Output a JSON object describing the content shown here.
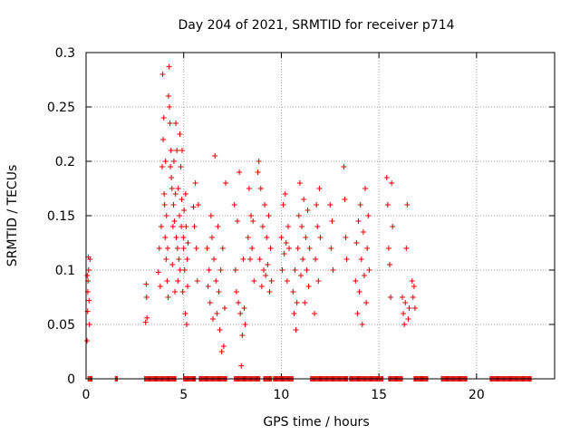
{
  "chart_data": {
    "type": "scatter",
    "title": "Day 204 of 2021, SRMTID for receiver p714",
    "xlabel": "GPS time / hours",
    "ylabel": "SRMTID / TECUs",
    "xlim": [
      0,
      24
    ],
    "ylim": [
      0,
      0.3
    ],
    "x_ticks": [
      0,
      5,
      10,
      15,
      20
    ],
    "x_tick_labels": [
      "0",
      "5",
      "10",
      "15",
      "20"
    ],
    "y_ticks": [
      0,
      0.05,
      0.1,
      0.15,
      0.2,
      0.25,
      0.3
    ],
    "y_tick_labels": [
      "0",
      "0.05",
      "0.1",
      "0.15",
      "0.2",
      "0.25",
      "0.3"
    ],
    "grid": true,
    "marker": "+",
    "color": "#dd0000",
    "series": [
      {
        "name": "SRMTID",
        "points": [
          [
            0.05,
            0.035
          ],
          [
            0.08,
            0.062
          ],
          [
            0.1,
            0.09
          ],
          [
            0.12,
            0.112
          ],
          [
            0.13,
            0.1
          ],
          [
            0.15,
            0.072
          ],
          [
            0.17,
            0.05
          ],
          [
            0.2,
            0.11
          ],
          [
            0.06,
            0.095
          ],
          [
            0.09,
            0.08
          ],
          [
            3.05,
            0.052
          ],
          [
            3.08,
            0.087
          ],
          [
            3.1,
            0.075
          ],
          [
            3.12,
            0.056
          ],
          [
            3.7,
            0.098
          ],
          [
            3.75,
            0.12
          ],
          [
            3.8,
            0.085
          ],
          [
            3.85,
            0.14
          ],
          [
            3.9,
            0.195
          ],
          [
            3.92,
            0.28
          ],
          [
            3.95,
            0.22
          ],
          [
            3.98,
            0.24
          ],
          [
            4.0,
            0.17
          ],
          [
            4.02,
            0.16
          ],
          [
            4.05,
            0.13
          ],
          [
            4.07,
            0.2
          ],
          [
            4.1,
            0.11
          ],
          [
            4.12,
            0.15
          ],
          [
            4.15,
            0.09
          ],
          [
            4.18,
            0.12
          ],
          [
            4.2,
            0.075
          ],
          [
            4.22,
            0.26
          ],
          [
            4.25,
            0.287
          ],
          [
            4.27,
            0.25
          ],
          [
            4.3,
            0.235
          ],
          [
            4.32,
            0.195
          ],
          [
            4.35,
            0.21
          ],
          [
            4.37,
            0.185
          ],
          [
            4.4,
            0.175
          ],
          [
            4.42,
            0.105
          ],
          [
            4.45,
            0.14
          ],
          [
            4.48,
            0.16
          ],
          [
            4.5,
            0.2
          ],
          [
            4.52,
            0.145
          ],
          [
            4.55,
            0.08
          ],
          [
            4.58,
            0.17
          ],
          [
            4.6,
            0.235
          ],
          [
            4.62,
            0.13
          ],
          [
            4.65,
            0.21
          ],
          [
            4.68,
            0.12
          ],
          [
            4.7,
            0.09
          ],
          [
            4.72,
            0.175
          ],
          [
            4.75,
            0.11
          ],
          [
            4.78,
            0.15
          ],
          [
            4.8,
            0.225
          ],
          [
            4.82,
            0.1
          ],
          [
            4.85,
            0.195
          ],
          [
            4.88,
            0.14
          ],
          [
            4.9,
            0.165
          ],
          [
            4.92,
            0.21
          ],
          [
            4.95,
            0.08
          ],
          [
            4.98,
            0.13
          ],
          [
            5.0,
            0.12
          ],
          [
            5.02,
            0.155
          ],
          [
            5.05,
            0.1
          ],
          [
            5.08,
            0.06
          ],
          [
            5.1,
            0.17
          ],
          [
            5.12,
            0.14
          ],
          [
            5.15,
            0.05
          ],
          [
            5.18,
            0.11
          ],
          [
            5.2,
            0.085
          ],
          [
            5.22,
            0.125
          ],
          [
            5.5,
            0.158
          ],
          [
            5.55,
            0.14
          ],
          [
            5.6,
            0.18
          ],
          [
            5.65,
            0.12
          ],
          [
            5.7,
            0.09
          ],
          [
            5.75,
            0.16
          ],
          [
            6.2,
            0.12
          ],
          [
            6.25,
            0.085
          ],
          [
            6.3,
            0.1
          ],
          [
            6.35,
            0.07
          ],
          [
            6.4,
            0.15
          ],
          [
            6.45,
            0.13
          ],
          [
            6.5,
            0.055
          ],
          [
            6.55,
            0.11
          ],
          [
            6.6,
            0.205
          ],
          [
            6.65,
            0.09
          ],
          [
            6.7,
            0.06
          ],
          [
            6.75,
            0.14
          ],
          [
            6.8,
            0.08
          ],
          [
            6.85,
            0.045
          ],
          [
            6.9,
            0.1
          ],
          [
            6.95,
            0.025
          ],
          [
            7.0,
            0.12
          ],
          [
            7.05,
            0.03
          ],
          [
            7.1,
            0.065
          ],
          [
            7.15,
            0.18
          ],
          [
            7.6,
            0.16
          ],
          [
            7.65,
            0.1
          ],
          [
            7.7,
            0.08
          ],
          [
            7.75,
            0.145
          ],
          [
            7.8,
            0.07
          ],
          [
            7.85,
            0.19
          ],
          [
            7.9,
            0.06
          ],
          [
            7.95,
            0.012
          ],
          [
            8.0,
            0.04
          ],
          [
            8.05,
            0.11
          ],
          [
            8.1,
            0.065
          ],
          [
            8.15,
            0.05
          ],
          [
            8.3,
            0.13
          ],
          [
            8.35,
            0.175
          ],
          [
            8.4,
            0.11
          ],
          [
            8.45,
            0.15
          ],
          [
            8.5,
            0.12
          ],
          [
            8.55,
            0.145
          ],
          [
            8.6,
            0.09
          ],
          [
            8.8,
            0.19
          ],
          [
            8.85,
            0.2
          ],
          [
            8.9,
            0.11
          ],
          [
            8.95,
            0.175
          ],
          [
            9.0,
            0.085
          ],
          [
            9.05,
            0.14
          ],
          [
            9.1,
            0.1
          ],
          [
            9.15,
            0.16
          ],
          [
            9.2,
            0.095
          ],
          [
            9.25,
            0.13
          ],
          [
            9.3,
            0.105
          ],
          [
            9.35,
            0.15
          ],
          [
            9.4,
            0.08
          ],
          [
            9.45,
            0.12
          ],
          [
            9.5,
            0.09
          ],
          [
            10.0,
            0.13
          ],
          [
            10.05,
            0.1
          ],
          [
            10.1,
            0.16
          ],
          [
            10.15,
            0.115
          ],
          [
            10.2,
            0.17
          ],
          [
            10.25,
            0.125
          ],
          [
            10.3,
            0.09
          ],
          [
            10.35,
            0.14
          ],
          [
            10.4,
            0.12
          ],
          [
            10.6,
            0.08
          ],
          [
            10.65,
            0.06
          ],
          [
            10.7,
            0.1
          ],
          [
            10.75,
            0.045
          ],
          [
            10.8,
            0.07
          ],
          [
            10.85,
            0.12
          ],
          [
            10.9,
            0.15
          ],
          [
            10.95,
            0.18
          ],
          [
            11.0,
            0.095
          ],
          [
            11.05,
            0.14
          ],
          [
            11.1,
            0.11
          ],
          [
            11.15,
            0.165
          ],
          [
            11.2,
            0.07
          ],
          [
            11.25,
            0.13
          ],
          [
            11.3,
            0.1
          ],
          [
            11.35,
            0.155
          ],
          [
            11.4,
            0.085
          ],
          [
            11.45,
            0.12
          ],
          [
            11.7,
            0.06
          ],
          [
            11.75,
            0.11
          ],
          [
            11.8,
            0.16
          ],
          [
            11.85,
            0.14
          ],
          [
            11.9,
            0.09
          ],
          [
            11.95,
            0.175
          ],
          [
            12.0,
            0.13
          ],
          [
            12.5,
            0.16
          ],
          [
            12.55,
            0.12
          ],
          [
            12.6,
            0.145
          ],
          [
            12.65,
            0.1
          ],
          [
            13.2,
            0.195
          ],
          [
            13.25,
            0.165
          ],
          [
            13.3,
            0.13
          ],
          [
            13.35,
            0.11
          ],
          [
            13.8,
            0.09
          ],
          [
            13.85,
            0.125
          ],
          [
            13.9,
            0.06
          ],
          [
            13.95,
            0.145
          ],
          [
            14.0,
            0.08
          ],
          [
            14.05,
            0.16
          ],
          [
            14.1,
            0.11
          ],
          [
            14.15,
            0.05
          ],
          [
            14.2,
            0.135
          ],
          [
            14.25,
            0.095
          ],
          [
            14.3,
            0.175
          ],
          [
            14.35,
            0.07
          ],
          [
            14.4,
            0.12
          ],
          [
            14.45,
            0.15
          ],
          [
            14.5,
            0.1
          ],
          [
            15.4,
            0.185
          ],
          [
            15.45,
            0.16
          ],
          [
            15.5,
            0.12
          ],
          [
            15.55,
            0.105
          ],
          [
            15.6,
            0.075
          ],
          [
            15.65,
            0.18
          ],
          [
            15.7,
            0.14
          ],
          [
            16.2,
            0.075
          ],
          [
            16.25,
            0.06
          ],
          [
            16.3,
            0.05
          ],
          [
            16.35,
            0.07
          ],
          [
            16.4,
            0.12
          ],
          [
            16.45,
            0.16
          ],
          [
            16.5,
            0.055
          ],
          [
            16.55,
            0.065
          ],
          [
            16.7,
            0.09
          ],
          [
            16.75,
            0.075
          ],
          [
            16.8,
            0.085
          ],
          [
            16.85,
            0.065
          ]
        ],
        "zero_runs": [
          [
            0.1,
            0.3
          ],
          [
            1.5,
            1.6
          ],
          [
            3.0,
            4.6
          ],
          [
            5.0,
            5.6
          ],
          [
            5.8,
            7.2
          ],
          [
            7.6,
            8.9
          ],
          [
            9.1,
            9.5
          ],
          [
            9.6,
            10.6
          ],
          [
            11.5,
            13.4
          ],
          [
            13.5,
            15.2
          ],
          [
            15.5,
            16.2
          ],
          [
            16.8,
            17.5
          ],
          [
            18.2,
            19.5
          ],
          [
            20.7,
            22.8
          ]
        ]
      }
    ]
  }
}
